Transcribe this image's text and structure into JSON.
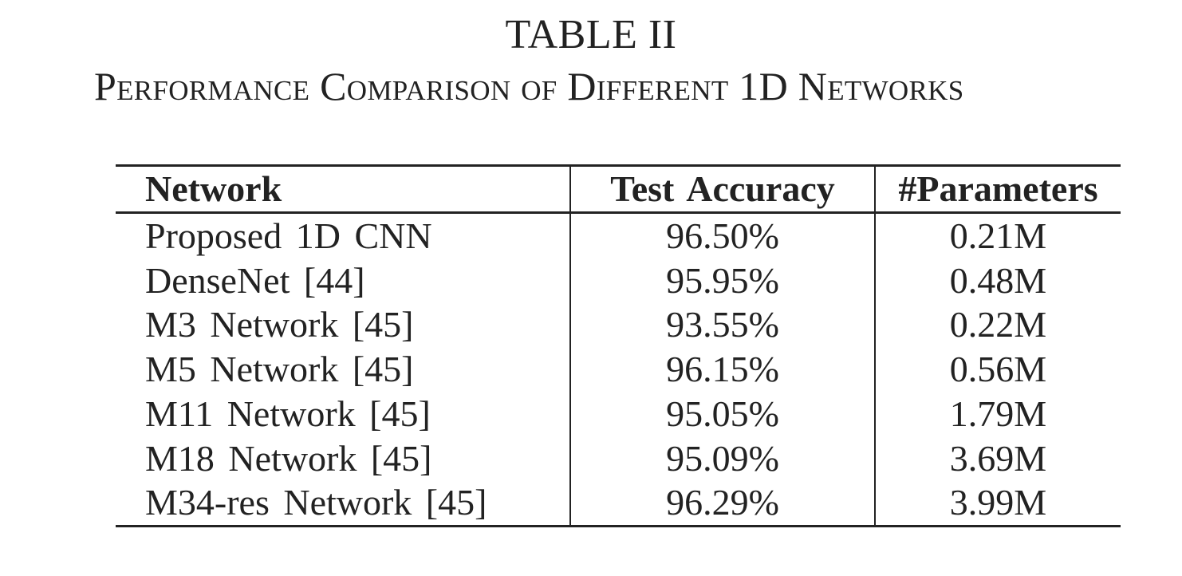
{
  "caption": {
    "label": "TABLE II",
    "title": "Performance Comparison of Different 1D Networks"
  },
  "table": {
    "headers": [
      "Network",
      "Test Accuracy",
      "#Parameters"
    ],
    "rows": [
      [
        "Proposed 1D CNN",
        "96.50%",
        "0.21M"
      ],
      [
        "DenseNet [44]",
        "95.95%",
        "0.48M"
      ],
      [
        "M3 Network [45]",
        "93.55%",
        "0.22M"
      ],
      [
        "M5 Network [45]",
        "96.15%",
        "0.56M"
      ],
      [
        "M11 Network [45]",
        "95.05%",
        "1.79M"
      ],
      [
        "M18 Network [45]",
        "95.09%",
        "3.69M"
      ],
      [
        "M34-res Network [45]",
        "96.29%",
        "3.99M"
      ]
    ]
  }
}
